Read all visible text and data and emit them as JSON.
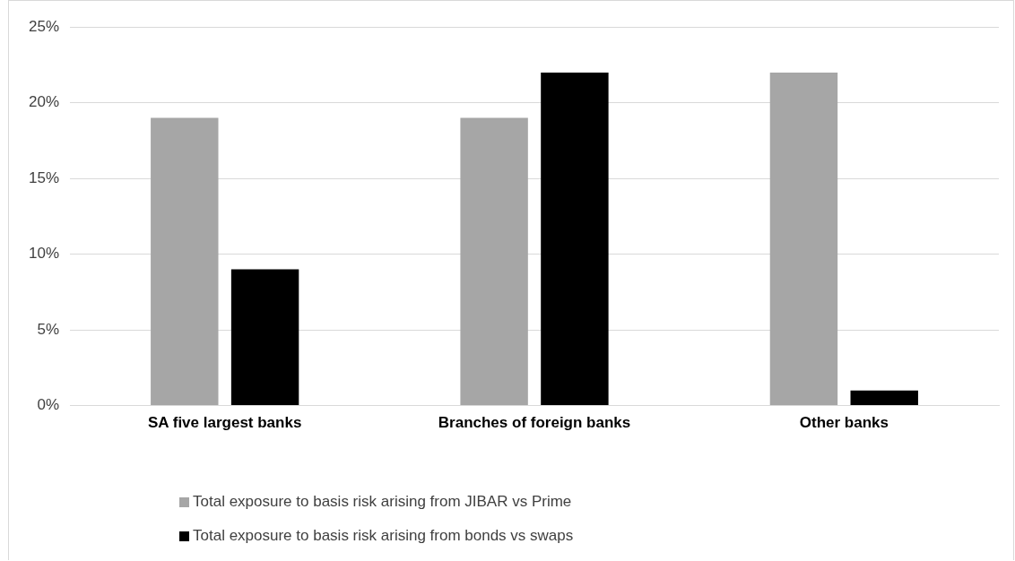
{
  "chart_data": {
    "type": "bar",
    "categories": [
      "SA five largest banks",
      "Branches of foreign banks",
      "Other banks"
    ],
    "series": [
      {
        "name": "Total exposure to basis risk arising from JIBAR vs Prime",
        "color": "#a6a6a6",
        "values": [
          19,
          19,
          22
        ]
      },
      {
        "name": "Total exposure to basis risk arising from bonds vs swaps",
        "color": "#000000",
        "values": [
          9,
          22,
          1
        ]
      }
    ],
    "ylim": [
      0,
      25
    ],
    "yticks": [
      {
        "value": 0,
        "label": "0%"
      },
      {
        "value": 5,
        "label": "5%"
      },
      {
        "value": 10,
        "label": "10%"
      },
      {
        "value": 15,
        "label": "15%"
      },
      {
        "value": 20,
        "label": "20%"
      },
      {
        "value": 25,
        "label": "25%"
      }
    ],
    "grid": "y",
    "legend": "bottom"
  }
}
